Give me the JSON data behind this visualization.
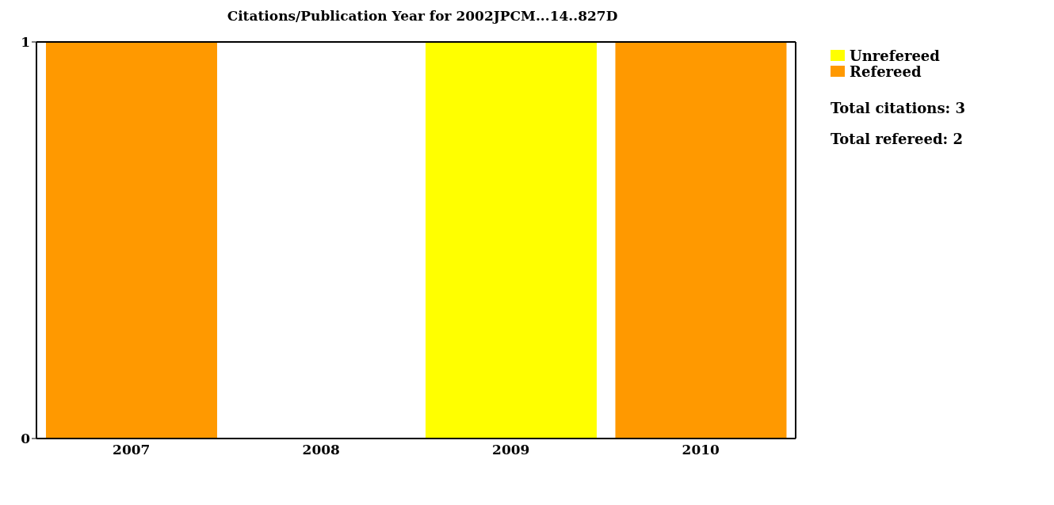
{
  "chart_data": {
    "type": "bar",
    "title": "Citations/Publication Year for 2002JPCM...14..827D",
    "categories": [
      "2007",
      "2008",
      "2009",
      "2010"
    ],
    "stacked": true,
    "series": [
      {
        "name": "Refereed",
        "color": "#ff9900",
        "values": [
          1,
          0,
          0,
          1
        ]
      },
      {
        "name": "Unrefereed",
        "color": "#ffff00",
        "values": [
          0,
          0,
          1,
          0
        ]
      }
    ],
    "ylim": [
      0,
      1
    ],
    "yticks": [
      0,
      1
    ],
    "grid": false,
    "legend": "top right",
    "annotations": [
      "Total citations: 3",
      "Total refereed: 2"
    ]
  }
}
